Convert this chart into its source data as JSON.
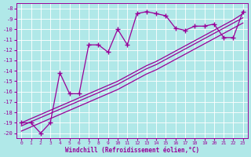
{
  "xlabel": "Windchill (Refroidissement éolien,°C)",
  "bg_color": "#b0e8e8",
  "line_color": "#990099",
  "grid_color": "#ffffff",
  "x_hours": [
    0,
    1,
    2,
    3,
    4,
    5,
    6,
    7,
    8,
    9,
    10,
    11,
    12,
    13,
    14,
    15,
    16,
    17,
    18,
    19,
    20,
    21,
    22,
    23
  ],
  "main_line": [
    -19.0,
    -19.0,
    -20.0,
    -19.0,
    -14.2,
    -16.2,
    -16.2,
    -11.5,
    -11.5,
    -12.2,
    -10.0,
    -11.5,
    -8.5,
    -8.3,
    -8.5,
    -8.7,
    -9.9,
    -10.1,
    -9.7,
    -9.7,
    -9.5,
    -10.8,
    -10.8,
    -8.3
  ],
  "diag1": [
    -19.0,
    -18.6,
    -18.2,
    -17.8,
    -17.4,
    -17.0,
    -16.6,
    -16.2,
    -15.8,
    -15.4,
    -15.0,
    -14.5,
    -14.0,
    -13.5,
    -13.1,
    -12.6,
    -12.1,
    -11.6,
    -11.1,
    -10.6,
    -10.1,
    -9.6,
    -9.1,
    -8.5
  ],
  "diag2": [
    -19.3,
    -18.9,
    -18.5,
    -18.1,
    -17.7,
    -17.3,
    -16.9,
    -16.5,
    -16.1,
    -15.7,
    -15.3,
    -14.8,
    -14.3,
    -13.8,
    -13.4,
    -12.9,
    -12.4,
    -11.9,
    -11.4,
    -10.9,
    -10.4,
    -9.9,
    -9.4,
    -8.9
  ],
  "diag3": [
    -19.8,
    -19.4,
    -19.0,
    -18.6,
    -18.2,
    -17.8,
    -17.4,
    -17.0,
    -16.6,
    -16.2,
    -15.8,
    -15.3,
    -14.8,
    -14.3,
    -13.9,
    -13.4,
    -12.9,
    -12.4,
    -11.9,
    -11.4,
    -10.9,
    -10.4,
    -9.9,
    -9.4
  ],
  "ylim": [
    -20.5,
    -7.5
  ],
  "xlim": [
    -0.5,
    23.5
  ],
  "yticks": [
    -8,
    -9,
    -10,
    -11,
    -12,
    -13,
    -14,
    -15,
    -16,
    -17,
    -18,
    -19,
    -20
  ],
  "xticks": [
    0,
    1,
    2,
    3,
    4,
    5,
    6,
    7,
    8,
    9,
    10,
    11,
    12,
    13,
    14,
    15,
    16,
    17,
    18,
    19,
    20,
    21,
    22,
    23
  ]
}
